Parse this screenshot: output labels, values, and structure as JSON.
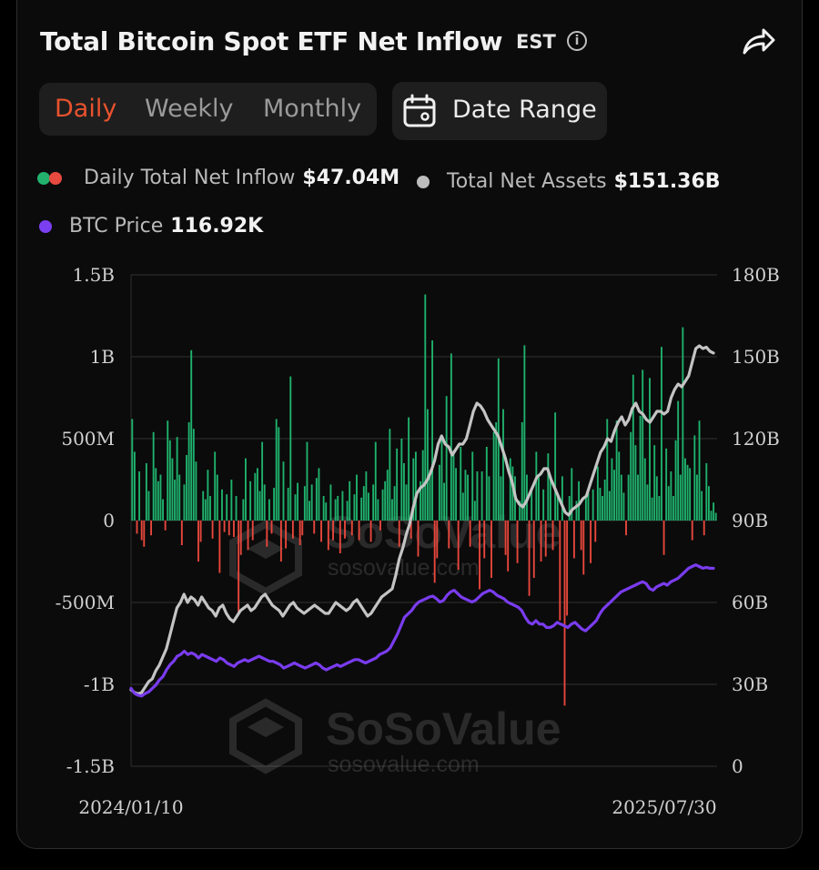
{
  "header": {
    "title": "Total Bitcoin Spot ETF Net Inflow",
    "timezone": "EST",
    "info_icon": "info-icon",
    "share_icon": "share-arrow-icon"
  },
  "tabs": [
    {
      "label": "Daily",
      "active": true
    },
    {
      "label": "Weekly",
      "active": false
    },
    {
      "label": "Monthly",
      "active": false
    }
  ],
  "date_range": {
    "label": "Date Range",
    "icon": "calendar-icon"
  },
  "legend": {
    "inflow": {
      "label": "Daily Total Net Inflow",
      "value": "$47.04M",
      "colors": [
        "#22b26e",
        "#e84a3f"
      ]
    },
    "assets": {
      "label": "Total Net Assets",
      "value": "$151.36B",
      "color": "#bdbdbd"
    },
    "price": {
      "label": "BTC Price",
      "value": "116.92K",
      "color": "#7b3ff2"
    }
  },
  "watermark": {
    "brand": "SoSoValue",
    "site": "sosovalue.com"
  },
  "colors": {
    "positive": "#1fb26d",
    "negative": "#e8473c",
    "assets_line": "#c4c4c4",
    "price_line": "#7a3cf0",
    "grid": "#2a2a2a"
  },
  "chart_data": {
    "type": "bar",
    "x_start_label": "2024/01/10",
    "x_end_label": "2025/07/30",
    "y_left": {
      "ticks": [
        "1.5B",
        "1B",
        "500M",
        "0",
        "-500M",
        "-1B",
        "-1.5B"
      ],
      "range": [
        -1500000000,
        1500000000
      ]
    },
    "y_right": {
      "ticks": [
        "180B",
        "150B",
        "120B",
        "90B",
        "60B",
        "30B",
        "0"
      ],
      "range": [
        0,
        180000000000
      ]
    },
    "series": [
      {
        "name": "Daily Total Net Inflow",
        "type": "bar",
        "unit": "M USD",
        "values": [
          620,
          420,
          -80,
          300,
          -120,
          -160,
          350,
          180,
          -90,
          540,
          320,
          240,
          280,
          130,
          -60,
          610,
          490,
          380,
          250,
          510,
          280,
          -150,
          220,
          400,
          600,
          1040,
          560,
          360,
          -250,
          -130,
          180,
          130,
          310,
          150,
          -110,
          420,
          280,
          -320,
          190,
          -70,
          160,
          -90,
          250,
          -100,
          150,
          -560,
          -210,
          130,
          380,
          -180,
          240,
          -120,
          290,
          320,
          180,
          480,
          220,
          -160,
          130,
          -80,
          200,
          620,
          570,
          -250,
          360,
          -170,
          200,
          880,
          -110,
          160,
          230,
          -150,
          -90,
          210,
          480,
          120,
          220,
          -80,
          260,
          320,
          -130,
          150,
          110,
          -180,
          220,
          -120,
          130,
          150,
          -200,
          180,
          -110,
          120,
          240,
          -90,
          160,
          280,
          -120,
          140,
          210,
          300,
          170,
          -130,
          220,
          480,
          130,
          -60,
          190,
          240,
          310,
          560,
          130,
          210,
          440,
          -160,
          500,
          350,
          220,
          630,
          -110,
          380,
          420,
          -220,
          240,
          430,
          1380,
          680,
          310,
          1100,
          -380,
          -230,
          340,
          520,
          230,
          760,
          -170,
          1020,
          430,
          320,
          -300,
          450,
          170,
          310,
          280,
          -160,
          420,
          120,
          300,
          -420,
          300,
          -230,
          450,
          270,
          -350,
          540,
          600,
          990,
          270,
          680,
          -210,
          -310,
          380,
          330,
          270,
          -260,
          120,
          600,
          1070,
          280,
          -460,
          180,
          -350,
          420,
          280,
          -250,
          190,
          -220,
          410,
          260,
          -180,
          660,
          170,
          -610,
          270,
          -1130,
          -580,
          150,
          320,
          -230,
          120,
          240,
          -180,
          -330,
          160,
          170,
          -260,
          190,
          -130,
          330,
          200,
          150,
          250,
          620,
          180,
          380,
          310,
          610,
          420,
          280,
          170,
          -90,
          280,
          540,
          890,
          460,
          280,
          640,
          920,
          380,
          220,
          870,
          140,
          460,
          270,
          150,
          1060,
          -210,
          440,
          210,
          300,
          150,
          490,
          730,
          280,
          1180,
          380,
          340,
          320,
          -120,
          520,
          280,
          610,
          180,
          -90,
          350,
          210,
          60,
          110,
          47
        ]
      },
      {
        "name": "Total Net Assets",
        "type": "line",
        "unit": "B USD",
        "values": [
          28,
          27,
          26.5,
          27,
          29,
          31,
          32,
          35,
          37,
          40,
          43,
          48,
          53,
          58,
          60,
          63,
          60,
          62,
          61,
          59,
          62,
          60,
          58,
          57,
          55,
          58,
          59,
          56,
          54,
          53,
          55,
          57,
          58,
          59,
          57,
          58,
          60,
          62,
          63,
          61,
          59,
          58,
          57,
          55,
          57,
          59,
          60,
          58,
          57,
          56,
          57,
          58,
          59,
          58,
          57,
          56,
          56,
          58,
          60,
          59,
          58,
          57,
          58,
          60,
          61,
          59,
          57,
          55,
          56,
          58,
          60,
          62,
          63,
          64,
          65,
          70,
          76,
          80,
          85,
          89,
          95,
          100,
          102,
          103,
          105,
          108,
          112,
          118,
          121,
          118,
          117,
          114,
          116,
          118,
          118,
          120,
          125,
          130,
          133,
          132,
          130,
          127,
          125,
          123,
          121,
          117,
          113,
          108,
          104,
          98,
          96,
          95,
          97,
          100,
          103,
          106,
          107,
          109,
          109,
          105,
          102,
          99,
          96,
          93,
          92,
          94,
          95,
          96,
          98,
          99,
          103,
          107,
          111,
          115,
          117,
          120,
          119,
          123,
          126,
          128,
          125,
          127,
          131,
          133,
          130,
          129,
          127,
          126,
          128,
          130,
          130,
          129,
          130,
          135,
          138,
          140,
          139,
          141,
          143,
          148,
          153,
          154,
          153,
          153.5,
          152,
          151.36
        ]
      },
      {
        "name": "BTC Price",
        "type": "line",
        "unit": "K USD",
        "values": [
          46,
          43,
          42,
          41.5,
          43,
          44,
          46,
          48,
          51,
          53,
          57,
          60,
          62,
          65,
          66,
          68,
          66,
          67,
          66,
          64,
          66,
          65,
          64,
          63,
          62,
          64,
          63,
          61,
          60,
          59,
          61,
          62,
          63,
          62,
          63,
          64,
          65,
          64,
          63,
          62,
          62,
          61,
          60,
          58,
          59,
          60,
          61,
          60,
          59,
          58,
          59,
          60,
          61,
          60,
          58,
          57,
          58,
          59,
          60,
          59,
          60,
          61,
          62,
          63,
          63,
          62,
          61,
          62,
          63,
          64,
          66,
          67,
          68,
          70,
          74,
          78,
          83,
          88,
          90,
          92,
          95,
          97,
          98,
          99,
          100,
          100.5,
          99,
          97,
          98,
          101,
          103,
          104,
          102,
          100,
          99,
          98,
          97,
          98,
          100,
          102,
          103,
          104,
          103,
          101,
          100,
          99,
          97,
          96,
          95,
          94,
          92,
          88,
          85,
          84,
          86,
          84,
          84,
          82,
          82,
          83,
          85,
          84,
          83,
          82,
          84,
          85,
          83,
          81,
          80,
          82,
          84,
          86,
          90,
          93,
          95,
          97,
          99,
          101,
          103,
          104,
          105,
          106,
          107,
          108,
          109,
          108,
          105,
          104,
          106,
          107,
          108,
          107,
          109,
          110,
          111,
          113,
          115,
          117,
          118,
          119,
          118,
          117,
          117.5,
          117,
          116.92
        ]
      }
    ],
    "grid": true
  }
}
